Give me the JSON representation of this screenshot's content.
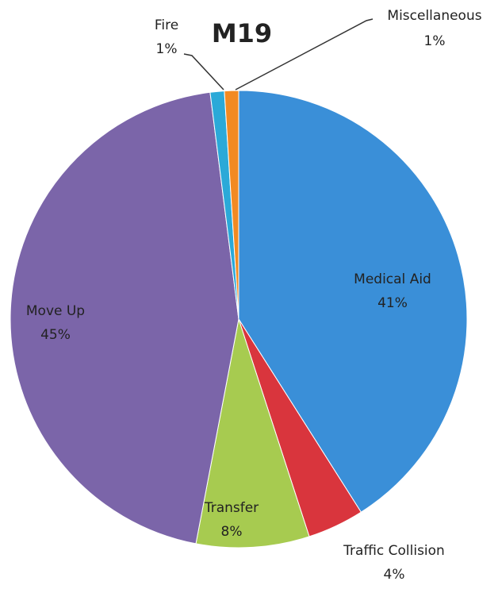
{
  "chart_data": {
    "type": "pie",
    "title": "M19",
    "categories": [
      "Medical Aid",
      "Traffic Collision",
      "Transfer",
      "Move Up",
      "Fire",
      "Miscellaneous"
    ],
    "values": [
      41,
      4,
      8,
      45,
      1,
      1
    ],
    "value_labels": [
      "41%",
      "4%",
      "8%",
      "45%",
      "1%",
      "1%"
    ],
    "colors": [
      "#3a8fd8",
      "#d9353d",
      "#a7cb50",
      "#7b65a9",
      "#2ba9d8",
      "#f28a22"
    ]
  }
}
